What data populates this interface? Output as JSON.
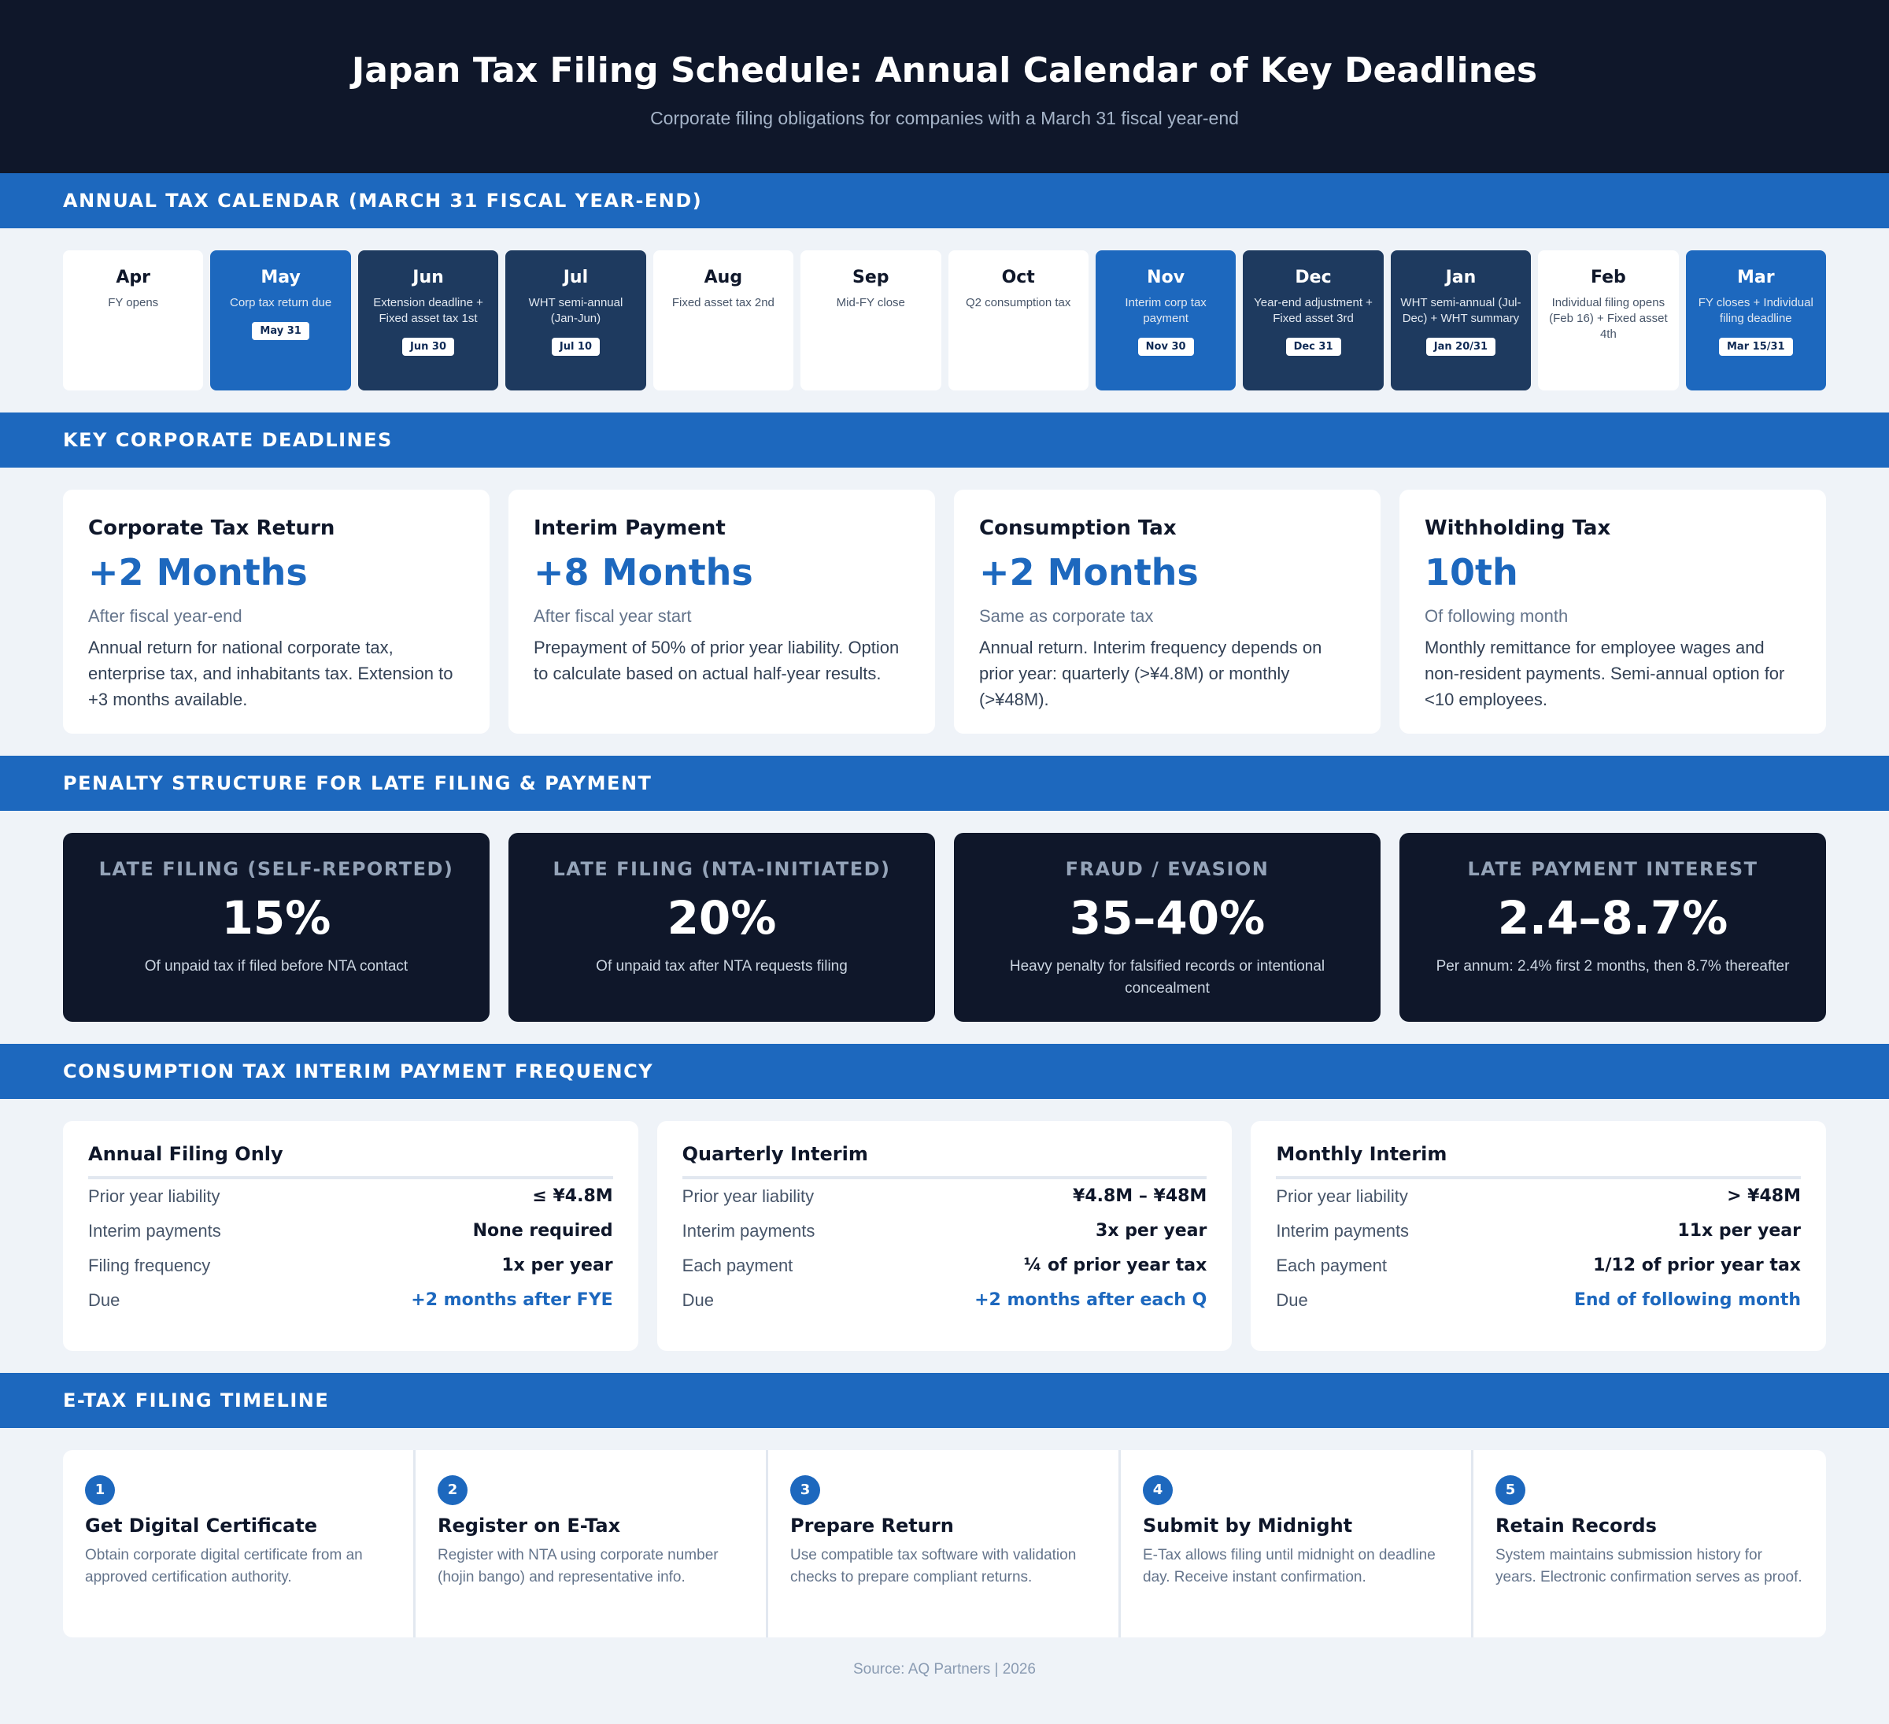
{
  "header": {
    "title": "Japan Tax Filing Schedule: Annual Calendar of Key Deadlines",
    "subtitle": "Corporate filing obligations for companies with a March 31 fiscal year-end"
  },
  "calendar": {
    "title": "Annual Tax Calendar (March 31 Fiscal Year-End)",
    "months": [
      {
        "name": "Apr",
        "desc": "FY opens",
        "badge": "",
        "style": "plain"
      },
      {
        "name": "May",
        "desc": "Corp tax return due",
        "badge": "May 31",
        "style": "active"
      },
      {
        "name": "Jun",
        "desc": "Extension deadline + Fixed asset tax 1st",
        "badge": "Jun 30",
        "style": "dark"
      },
      {
        "name": "Jul",
        "desc": "WHT semi-annual (Jan-Jun)",
        "badge": "Jul 10",
        "style": "dark"
      },
      {
        "name": "Aug",
        "desc": "Fixed asset tax 2nd",
        "badge": "",
        "style": "plain"
      },
      {
        "name": "Sep",
        "desc": "Mid-FY close",
        "badge": "",
        "style": "plain"
      },
      {
        "name": "Oct",
        "desc": "Q2 consumption tax",
        "badge": "",
        "style": "plain"
      },
      {
        "name": "Nov",
        "desc": "Interim corp tax payment",
        "badge": "Nov 30",
        "style": "active"
      },
      {
        "name": "Dec",
        "desc": "Year-end adjustment + Fixed asset 3rd",
        "badge": "Dec 31",
        "style": "dark"
      },
      {
        "name": "Jan",
        "desc": "WHT semi-annual (Jul-Dec) + WHT summary",
        "badge": "Jan 20/31",
        "style": "dark"
      },
      {
        "name": "Feb",
        "desc": "Individual filing opens (Feb 16) + Fixed asset 4th",
        "badge": "",
        "style": "plain"
      },
      {
        "name": "Mar",
        "desc": "FY closes + Individual filing deadline",
        "badge": "Mar 15/31",
        "style": "active"
      }
    ]
  },
  "deadlines": {
    "title": "Key Corporate Deadlines",
    "cards": [
      {
        "title": "Corporate Tax Return",
        "big": "+2 Months",
        "sub": "After fiscal year-end",
        "desc": "Annual return for national corporate tax, enterprise tax, and inhabitants tax. Extension to +3 months available."
      },
      {
        "title": "Interim Payment",
        "big": "+8 Months",
        "sub": "After fiscal year start",
        "desc": "Prepayment of 50% of prior year liability. Option to calculate based on actual half-year results."
      },
      {
        "title": "Consumption Tax",
        "big": "+2 Months",
        "sub": "Same as corporate tax",
        "desc": "Annual return. Interim frequency depends on prior year: quarterly (>¥4.8M) or monthly (>¥48M)."
      },
      {
        "title": "Withholding Tax",
        "big": "10th",
        "sub": "Of following month",
        "desc": "Monthly remittance for employee wages and non-resident payments. Semi-annual option for <10 employees."
      }
    ]
  },
  "penalties": {
    "title": "Penalty Structure for Late Filing & Payment",
    "cards": [
      {
        "label": "Late Filing (Self-Reported)",
        "big": "15%",
        "desc": "Of unpaid tax if filed before NTA contact"
      },
      {
        "label": "Late Filing (NTA-Initiated)",
        "big": "20%",
        "desc": "Of unpaid tax after NTA requests filing"
      },
      {
        "label": "Fraud / Evasion",
        "big": "35–40%",
        "desc": "Heavy penalty for falsified records or intentional concealment"
      },
      {
        "label": "Late Payment Interest",
        "big": "2.4–8.7%",
        "desc": "Per annum: 2.4% first 2 months, then 8.7% thereafter"
      }
    ]
  },
  "frequency": {
    "title": "Consumption Tax Interim Payment Frequency",
    "cards": [
      {
        "title": "Annual Filing Only",
        "rows": [
          {
            "k": "Prior year liability",
            "v": "≤ ¥4.8M"
          },
          {
            "k": "Interim payments",
            "v": "None required"
          },
          {
            "k": "Filing frequency",
            "v": "1x per year"
          },
          {
            "k": "Due",
            "v": "+2 months after FYE"
          }
        ]
      },
      {
        "title": "Quarterly Interim",
        "rows": [
          {
            "k": "Prior year liability",
            "v": "¥4.8M – ¥48M"
          },
          {
            "k": "Interim payments",
            "v": "3x per year"
          },
          {
            "k": "Each payment",
            "v": "¼ of prior year tax"
          },
          {
            "k": "Due",
            "v": "+2 months after each Q"
          }
        ]
      },
      {
        "title": "Monthly Interim",
        "rows": [
          {
            "k": "Prior year liability",
            "v": "> ¥48M"
          },
          {
            "k": "Interim payments",
            "v": "11x per year"
          },
          {
            "k": "Each payment",
            "v": "1/12 of prior year tax"
          },
          {
            "k": "Due",
            "v": "End of following month"
          }
        ]
      }
    ]
  },
  "etax": {
    "title": "E-Tax Filing Timeline",
    "steps": [
      {
        "num": "1",
        "title": "Get Digital Certificate",
        "desc": "Obtain corporate digital certificate from an approved certification authority."
      },
      {
        "num": "2",
        "title": "Register on E-Tax",
        "desc": "Register with NTA using corporate number (hojin bango) and representative info."
      },
      {
        "num": "3",
        "title": "Prepare Return",
        "desc": "Use compatible tax software with validation checks to prepare compliant returns."
      },
      {
        "num": "4",
        "title": "Submit by Midnight",
        "desc": "E-Tax allows filing until midnight on deadline day. Receive instant confirmation."
      },
      {
        "num": "5",
        "title": "Retain Records",
        "desc": "System maintains submission history for years. Electronic confirmation serves as proof."
      }
    ]
  },
  "footer": {
    "source": "Source: AQ Partners | 2026"
  },
  "colors": {
    "navy": "#0f172a",
    "accent": "#1d68be",
    "dark_card": "#1e3a5f",
    "background": "#eff3f8"
  }
}
